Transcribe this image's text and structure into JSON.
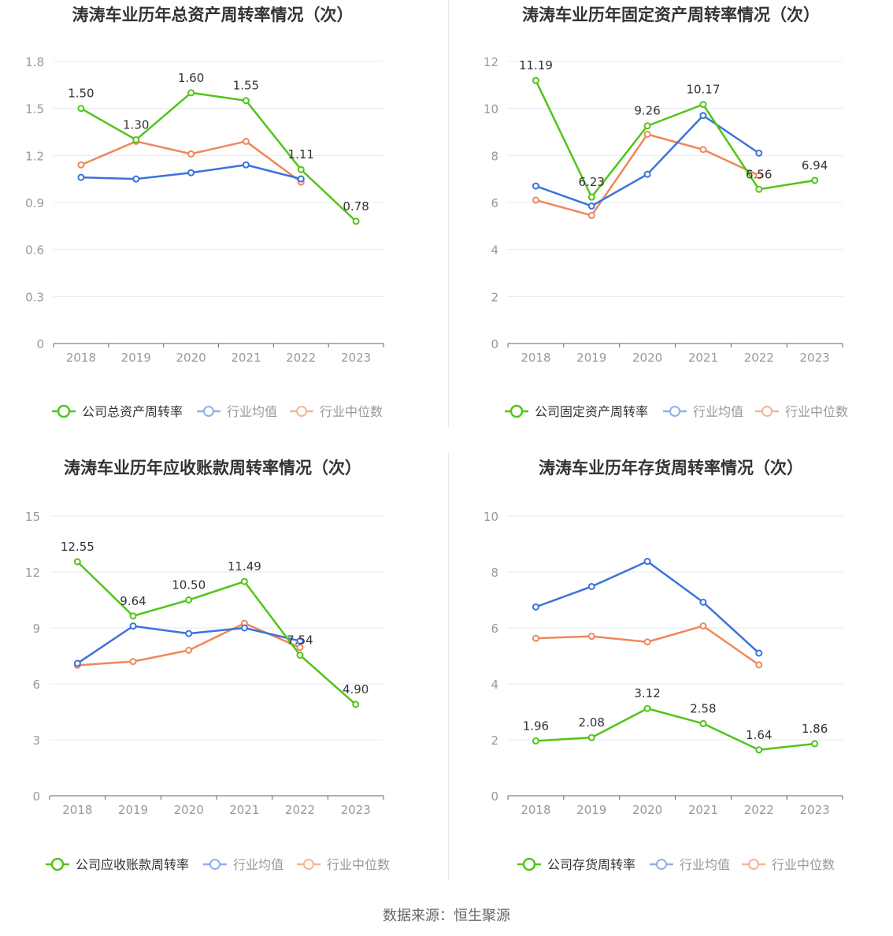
{
  "footer": {
    "source": "数据来源：恒生聚源"
  },
  "colors": {
    "company": "#52c41a",
    "mean": "#3b73db",
    "median": "#f0875a",
    "grid": "#e6e8f0",
    "axis": "#666666",
    "tick": "#999999",
    "title": "#333333"
  },
  "chart_data": [
    {
      "type": "line",
      "title": "涛涛车业历年总资产周转率情况（次）",
      "categories": [
        "2018",
        "2019",
        "2020",
        "2021",
        "2022",
        "2023"
      ],
      "ylim": [
        0,
        1.8
      ],
      "yticks": [
        "0",
        "0.3",
        "0.6",
        "0.9",
        "1.2",
        "1.5",
        "1.8"
      ],
      "series": [
        {
          "name": "公司总资产周转率",
          "values": [
            1.5,
            1.3,
            1.6,
            1.55,
            1.11,
            0.78
          ],
          "labels": [
            "1.50",
            "1.30",
            "1.60",
            "1.55",
            "1.11",
            "0.78"
          ]
        },
        {
          "name": "行业均值",
          "values": [
            1.06,
            1.05,
            1.09,
            1.14,
            1.05,
            null
          ]
        },
        {
          "name": "行业中位数",
          "values": [
            1.14,
            1.29,
            1.21,
            1.29,
            1.03,
            null
          ]
        }
      ]
    },
    {
      "type": "line",
      "title": "涛涛车业历年固定资产周转率情况（次）",
      "categories": [
        "2018",
        "2019",
        "2020",
        "2021",
        "2022",
        "2023"
      ],
      "ylim": [
        0,
        12
      ],
      "yticks": [
        "0",
        "2",
        "4",
        "6",
        "8",
        "10",
        "12"
      ],
      "series": [
        {
          "name": "公司固定资产周转率",
          "values": [
            11.19,
            6.23,
            9.26,
            10.17,
            6.56,
            6.94
          ],
          "labels": [
            "11.19",
            "6.23",
            "9.26",
            "10.17",
            "6.56",
            "6.94"
          ]
        },
        {
          "name": "行业均值",
          "values": [
            6.7,
            5.85,
            7.2,
            9.7,
            8.1,
            null
          ]
        },
        {
          "name": "行业中位数",
          "values": [
            6.1,
            5.45,
            8.9,
            8.25,
            7.15,
            null
          ]
        }
      ]
    },
    {
      "type": "line",
      "title": "涛涛车业历年应收账款周转率情况（次）",
      "categories": [
        "2018",
        "2019",
        "2020",
        "2021",
        "2022",
        "2023"
      ],
      "ylim": [
        0,
        15
      ],
      "yticks": [
        "0",
        "3",
        "6",
        "9",
        "12",
        "15"
      ],
      "series": [
        {
          "name": "公司应收账款周转率",
          "values": [
            12.55,
            9.64,
            10.5,
            11.49,
            7.54,
            4.9
          ],
          "labels": [
            "12.55",
            "9.64",
            "10.50",
            "11.49",
            "7.54",
            "4.90"
          ]
        },
        {
          "name": "行业均值",
          "values": [
            7.1,
            9.1,
            8.7,
            9.0,
            8.3,
            null
          ]
        },
        {
          "name": "行业中位数",
          "values": [
            7.0,
            7.2,
            7.8,
            9.25,
            7.95,
            null
          ]
        }
      ]
    },
    {
      "type": "line",
      "title": "涛涛车业历年存货周转率情况（次）",
      "categories": [
        "2018",
        "2019",
        "2020",
        "2021",
        "2022",
        "2023"
      ],
      "ylim": [
        0,
        10
      ],
      "yticks": [
        "0",
        "2",
        "4",
        "6",
        "8",
        "10"
      ],
      "series": [
        {
          "name": "公司存货周转率",
          "values": [
            1.96,
            2.08,
            3.12,
            2.58,
            1.64,
            1.86
          ],
          "labels": [
            "1.96",
            "2.08",
            "3.12",
            "2.58",
            "1.64",
            "1.86"
          ]
        },
        {
          "name": "行业均值",
          "values": [
            6.75,
            7.48,
            8.38,
            6.92,
            5.1,
            null
          ]
        },
        {
          "name": "行业中位数",
          "values": [
            5.63,
            5.7,
            5.5,
            6.07,
            4.68,
            null
          ]
        }
      ]
    }
  ]
}
